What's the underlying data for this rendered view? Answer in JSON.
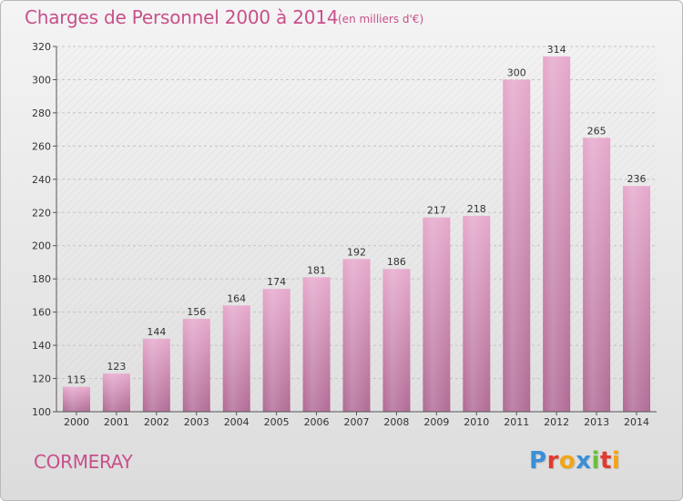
{
  "header": {
    "title": "Charges de Personnel 2000 à 2014",
    "subtitle": "(en milliers d'€)"
  },
  "footer": {
    "place": "CORMERAY",
    "logo": "Proxiti",
    "logo_colors": [
      "#3a8fd8",
      "#e23a2e",
      "#f2a516",
      "#3a8fd8",
      "#6bbf3a",
      "#e23a2e",
      "#f2a516"
    ]
  },
  "chart_data": {
    "type": "bar",
    "title": "Charges de Personnel 2000 à 2014",
    "subtitle": "(en milliers d'€)",
    "xlabel": "",
    "ylabel": "",
    "categories": [
      "2000",
      "2001",
      "2002",
      "2003",
      "2004",
      "2005",
      "2006",
      "2007",
      "2008",
      "2009",
      "2010",
      "2011",
      "2012",
      "2013",
      "2014"
    ],
    "values": [
      115,
      123,
      144,
      156,
      164,
      174,
      181,
      192,
      186,
      217,
      218,
      300,
      314,
      265,
      236
    ],
    "ylim": [
      100,
      320
    ],
    "yticks": [
      100,
      120,
      140,
      160,
      180,
      200,
      220,
      240,
      260,
      280,
      300,
      320
    ],
    "grid": true,
    "bar_color": "#d98cb4"
  }
}
